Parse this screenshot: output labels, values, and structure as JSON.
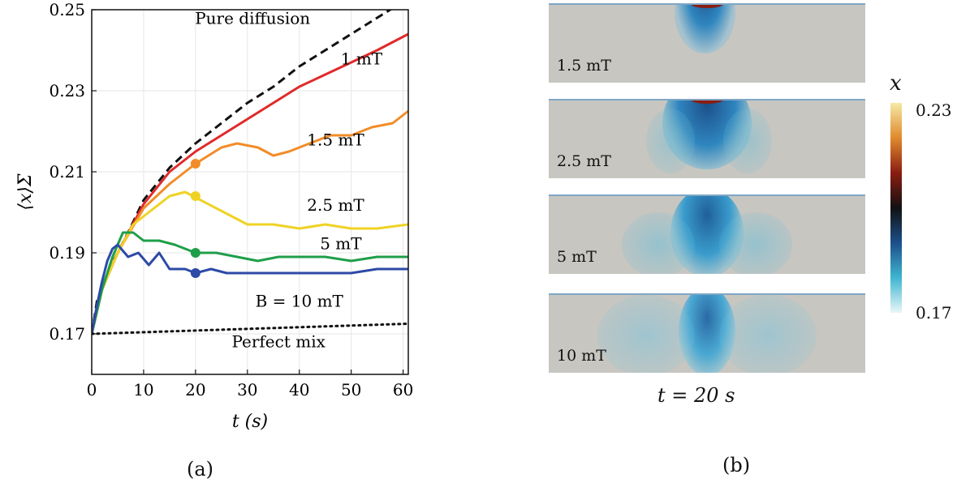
{
  "chart_data": {
    "type": "line",
    "panel_label": "(a)",
    "xlabel": "t (s)",
    "ylabel": "⟨x⟩Σ",
    "xlim": [
      0,
      61
    ],
    "ylim": [
      0.16,
      0.25
    ],
    "xticks": [
      0,
      10,
      20,
      30,
      40,
      50,
      60
    ],
    "yticks": [
      0.17,
      0.19,
      0.21,
      0.23,
      0.25
    ],
    "grid": true,
    "series": [
      {
        "name": "Pure diffusion",
        "color": "#111111",
        "style": "dashed",
        "x": [
          0,
          1,
          2,
          3,
          5,
          7,
          10,
          15,
          20,
          25,
          30,
          35,
          40,
          45,
          50,
          55,
          60
        ],
        "y": [
          0.17,
          0.178,
          0.181,
          0.185,
          0.19,
          0.195,
          0.203,
          0.211,
          0.217,
          0.222,
          0.227,
          0.231,
          0.236,
          0.24,
          0.244,
          0.248,
          0.252
        ]
      },
      {
        "name": "1 mT",
        "color": "#e02a2a",
        "style": "solid",
        "x": [
          0,
          2,
          5,
          10,
          15,
          20,
          25,
          30,
          35,
          40,
          45,
          50,
          55,
          61
        ],
        "y": [
          0.17,
          0.181,
          0.19,
          0.202,
          0.21,
          0.215,
          0.219,
          0.223,
          0.227,
          0.231,
          0.234,
          0.237,
          0.24,
          0.244
        ]
      },
      {
        "name": "1.5 mT",
        "color": "#f28c28",
        "style": "solid",
        "x": [
          0,
          2,
          5,
          10,
          15,
          20,
          25,
          28,
          32,
          35,
          38,
          42,
          46,
          50,
          54,
          58,
          61
        ],
        "y": [
          0.17,
          0.181,
          0.19,
          0.201,
          0.207,
          0.212,
          0.216,
          0.217,
          0.216,
          0.214,
          0.215,
          0.217,
          0.219,
          0.219,
          0.221,
          0.222,
          0.225
        ]
      },
      {
        "name": "2.5 mT",
        "color": "#f0d225",
        "style": "solid",
        "x": [
          0,
          2,
          5,
          8,
          12,
          15,
          18,
          21,
          24,
          27,
          30,
          35,
          40,
          45,
          50,
          55,
          61
        ],
        "y": [
          0.17,
          0.181,
          0.19,
          0.197,
          0.201,
          0.204,
          0.205,
          0.203,
          0.201,
          0.199,
          0.197,
          0.197,
          0.196,
          0.197,
          0.196,
          0.196,
          0.197
        ]
      },
      {
        "name": "5 mT",
        "color": "#1f9e4a",
        "style": "solid",
        "x": [
          0,
          2,
          4,
          6,
          8,
          10,
          13,
          16,
          20,
          24,
          28,
          32,
          36,
          40,
          45,
          50,
          55,
          61
        ],
        "y": [
          0.17,
          0.181,
          0.189,
          0.195,
          0.195,
          0.193,
          0.193,
          0.192,
          0.19,
          0.19,
          0.189,
          0.188,
          0.189,
          0.189,
          0.189,
          0.188,
          0.189,
          0.189
        ]
      },
      {
        "name": "B = 10 mT",
        "color": "#2c4aa6",
        "style": "solid",
        "x": [
          0,
          1,
          2,
          3,
          4,
          5,
          7,
          9,
          11,
          13,
          15,
          18,
          20,
          23,
          26,
          30,
          35,
          40,
          45,
          50,
          55,
          61
        ],
        "y": [
          0.17,
          0.177,
          0.183,
          0.188,
          0.191,
          0.192,
          0.189,
          0.19,
          0.187,
          0.19,
          0.186,
          0.186,
          0.185,
          0.186,
          0.185,
          0.185,
          0.185,
          0.185,
          0.185,
          0.185,
          0.186,
          0.186
        ]
      },
      {
        "name": "Perfect mix",
        "color": "#111111",
        "style": "dotted",
        "x": [
          0,
          61
        ],
        "y": [
          0.17,
          0.1725
        ]
      }
    ],
    "markers": [
      {
        "x": 20,
        "y": 0.212,
        "color": "#f28c28"
      },
      {
        "x": 20,
        "y": 0.204,
        "color": "#f0d225"
      },
      {
        "x": 20,
        "y": 0.19,
        "color": "#1f9e4a"
      },
      {
        "x": 20,
        "y": 0.185,
        "color": "#2c4aa6"
      }
    ],
    "annotations": [
      {
        "text": "Pure diffusion",
        "x": 31,
        "y": 0.2465
      },
      {
        "text": "1 mT",
        "x": 52,
        "y": 0.2365
      },
      {
        "text": "1.5 mT",
        "x": 47,
        "y": 0.2165
      },
      {
        "text": "2.5 mT",
        "x": 47,
        "y": 0.2004
      },
      {
        "text": "5 mT",
        "x": 48,
        "y": 0.1909
      },
      {
        "text": "B = 10 mT",
        "x": 40,
        "y": 0.1767
      },
      {
        "text": "Perfect mix",
        "x": 36,
        "y": 0.1667
      }
    ]
  },
  "panel_b": {
    "panel_label": "(b)",
    "time_label": "t = 20 s",
    "colorbar": {
      "variable": "x",
      "max_label": "0.23",
      "min_label": "0.17",
      "colors": [
        "#f6e9a4",
        "#e08a2e",
        "#8a1d12",
        "#111111",
        "#1c4f8a",
        "#3fb6d0",
        "#eaf6f8"
      ]
    },
    "fields": [
      {
        "label": "1.5 mT"
      },
      {
        "label": "2.5 mT"
      },
      {
        "label": "5 mT"
      },
      {
        "label": "10 mT"
      }
    ]
  }
}
